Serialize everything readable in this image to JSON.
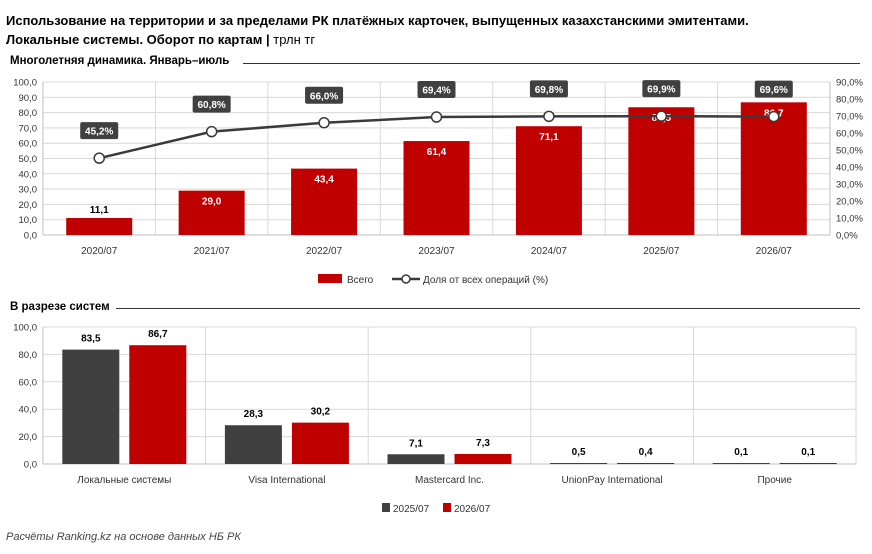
{
  "title": {
    "line1": "Использование на территории и за пределами РК платёжных карточек, выпущенных казахстанскими эмитентами.",
    "line2": "Локальные системы. Оборот по картам",
    "unit": "трлн тг"
  },
  "footer": "Расчёты Ranking.kz на основе данных НБ РК",
  "colors": {
    "red": "#c00000",
    "dark": "#404040",
    "line": "#3a3a3a",
    "grid": "#d9d9d9"
  },
  "chart_data": [
    {
      "type": "bar",
      "title": "Многолетняя динамика. Январь–июль",
      "categories": [
        "2020/07",
        "2021/07",
        "2022/07",
        "2023/07",
        "2024/07",
        "2025/07",
        "2026/07"
      ],
      "series": [
        {
          "name": "Всего",
          "type": "bar",
          "axis": "left",
          "color": "#c00000",
          "values": [
            11.1,
            29.0,
            43.4,
            61.4,
            71.1,
            83.5,
            86.7
          ],
          "labels": [
            "11,1",
            "29,0",
            "43,4",
            "61,4",
            "71,1",
            "83,5",
            "86,7"
          ]
        },
        {
          "name": "Доля от всех операций (%)",
          "type": "line",
          "axis": "right",
          "color": "#3a3a3a",
          "values": [
            45.2,
            60.8,
            66.0,
            69.4,
            69.8,
            69.9,
            69.6
          ],
          "labels": [
            "45,2%",
            "60,8%",
            "66,0%",
            "69,4%",
            "69,8%",
            "69,9%",
            "69,6%"
          ]
        }
      ],
      "ylim": [
        0,
        100
      ],
      "y_ticks": [
        "0,0",
        "10,0",
        "20,0",
        "30,0",
        "40,0",
        "50,0",
        "60,0",
        "70,0",
        "80,0",
        "90,0",
        "100,0"
      ],
      "y2lim": [
        0,
        90
      ],
      "y2_ticks": [
        "0,0%",
        "10,0%",
        "20,0%",
        "30,0%",
        "40,0%",
        "50,0%",
        "60,0%",
        "70,0%",
        "80,0%",
        "90,0%"
      ],
      "grid": true,
      "legend": "bottom"
    },
    {
      "type": "bar",
      "title": "В разрезе систем",
      "categories": [
        "Локальные системы",
        "Visa International",
        "Mastercard Inc.",
        "UnionPay International",
        "Прочие"
      ],
      "series": [
        {
          "name": "2025/07",
          "color": "#404040",
          "values": [
            83.5,
            28.3,
            7.1,
            0.5,
            0.1
          ],
          "labels": [
            "83,5",
            "28,3",
            "7,1",
            "0,5",
            "0,1"
          ]
        },
        {
          "name": "2026/07",
          "color": "#c00000",
          "values": [
            86.7,
            30.2,
            7.3,
            0.4,
            0.1
          ],
          "labels": [
            "86,7",
            "30,2",
            "7,3",
            "0,4",
            "0,1"
          ]
        }
      ],
      "ylim": [
        0,
        100
      ],
      "y_ticks": [
        "0,0",
        "20,0",
        "40,0",
        "60,0",
        "80,0",
        "100,0"
      ],
      "grid": true,
      "legend": "bottom"
    }
  ]
}
